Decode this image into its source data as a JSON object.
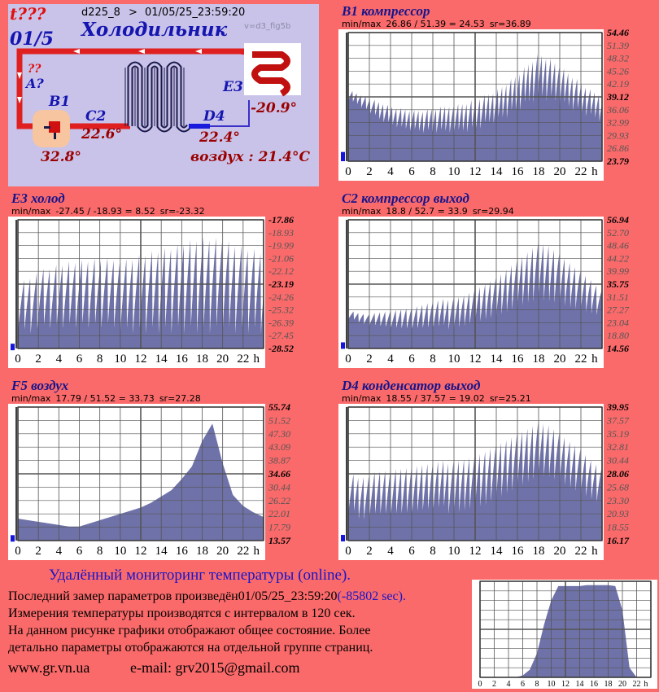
{
  "diagram": {
    "alarm": "t???",
    "fraction": "01/5",
    "device": "d225_8",
    "arrow": ">",
    "timestamp": "01/05/25_23:59:20",
    "title": "Холодильник",
    "version": "v=d3_fig5b",
    "q_marks": "??",
    "a_label": "A?",
    "b1_label": "B1",
    "c2_label": "C2",
    "d4_label": "D4",
    "e3_label": "E3",
    "b1_value": "32.8°",
    "c2_value": "22.6°",
    "d4_value": "22.4°",
    "e3_value": "-20.9°",
    "air_value": "воздух : 21.4°C"
  },
  "colors": {
    "panel_bg": "#c9c3e9",
    "plot_bg": "#ffffff",
    "plot_fill": "#6f72a8",
    "grid": "#444444",
    "title": "#15158c",
    "value_red": "#9a0000",
    "page_bg": "#fb6a6a"
  },
  "x_ticks": [
    "0",
    "2",
    "4",
    "6",
    "8",
    "10",
    "12",
    "14",
    "16",
    "18",
    "20",
    "22",
    "h"
  ],
  "chart_data": [
    {
      "id": "b1",
      "type": "area",
      "title": "B1 компрессор",
      "stats": [
        "min/max",
        "26.86 / 51.39 = 24.53",
        "sr=36.89"
      ],
      "y_ticks": [
        "54.46",
        "51.39",
        "48.32",
        "45.26",
        "42.19",
        "39.12",
        "36.06",
        "32.99",
        "29.93",
        "26.86",
        "23.79"
      ],
      "bold_ticks": [
        0,
        5,
        10
      ],
      "ylim": [
        23.79,
        54.46
      ],
      "x": [
        0,
        1,
        2,
        3,
        4,
        5,
        6,
        7,
        8,
        9,
        10,
        11,
        12,
        13,
        14,
        15,
        16,
        17,
        18,
        19,
        20,
        21,
        22,
        23,
        24
      ],
      "base": [
        38,
        37,
        35,
        33,
        32,
        31,
        30.5,
        30,
        30,
        30,
        30,
        30.5,
        31,
        32,
        33,
        34,
        35.5,
        37,
        38.5,
        38,
        37,
        36,
        35,
        34,
        33
      ],
      "peak": [
        41,
        40,
        39,
        38,
        37,
        36.5,
        36,
        36,
        36.5,
        37,
        37.5,
        38,
        39,
        40,
        41,
        43,
        45,
        47.5,
        50,
        49,
        47,
        45,
        43,
        41,
        40
      ],
      "cycles_per_hour": 2.4
    },
    {
      "id": "e3",
      "type": "area",
      "title": "E3 холод",
      "stats": [
        "min/max",
        "-27.45 / -18.93 = 8.52",
        "sr=-23.32"
      ],
      "y_ticks": [
        "-17.86",
        "-18.93",
        "-19.99",
        "-21.06",
        "-22.12",
        "-23.19",
        "-24.26",
        "-25.32",
        "-26.39",
        "-27.45",
        "-28.52"
      ],
      "bold_ticks": [
        0,
        5,
        10
      ],
      "ylim": [
        -28.52,
        -17.86
      ],
      "x": [
        0,
        1,
        2,
        3,
        4,
        5,
        6,
        7,
        8,
        9,
        10,
        11,
        12,
        13,
        14,
        15,
        16,
        17,
        18,
        19,
        20,
        21,
        22,
        23,
        24
      ],
      "base": [
        -27.3,
        -27.3,
        -27.3,
        -27.3,
        -27.3,
        -27.3,
        -27.3,
        -27.3,
        -27.3,
        -27.3,
        -27.3,
        -27.3,
        -27.3,
        -27.3,
        -27.3,
        -27.3,
        -27.3,
        -27.3,
        -27.3,
        -27.3,
        -27.3,
        -27.3,
        -27.3,
        -27.3,
        -27.3
      ],
      "peak": [
        -23,
        -22.5,
        -22,
        -21.8,
        -21.5,
        -21.3,
        -21.2,
        -21.1,
        -21,
        -21,
        -21,
        -20.8,
        -20.5,
        -20.2,
        -20,
        -19.8,
        -19.5,
        -19.2,
        -19,
        -19,
        -19.2,
        -19.5,
        -19.8,
        -20,
        -20.3
      ],
      "cycles_per_hour": 1.6
    },
    {
      "id": "f5",
      "type": "area",
      "title": "F5 воздух",
      "stats": [
        "min/max",
        "17.79 / 51.52 = 33.73",
        "sr=27.28"
      ],
      "y_ticks": [
        "55.74",
        "51.52",
        "47.30",
        "43.09",
        "38.87",
        "34.66",
        "30.44",
        "26.22",
        "22.01",
        "17.79",
        "13.57"
      ],
      "bold_ticks": [
        0,
        5,
        10
      ],
      "ylim": [
        13.57,
        55.74
      ],
      "x": [
        0,
        1,
        2,
        3,
        4,
        5,
        6,
        7,
        8,
        9,
        10,
        11,
        12,
        13,
        14,
        15,
        16,
        17,
        18,
        19,
        20,
        21,
        22,
        23,
        24
      ],
      "base": [
        20.5,
        20,
        19.5,
        19,
        18.5,
        18,
        18,
        19,
        20,
        21,
        22,
        23,
        24,
        25.5,
        27.5,
        29.5,
        33,
        37,
        45,
        50.5,
        38,
        28,
        24.5,
        22.5,
        21
      ],
      "peak": [
        20.5,
        20,
        19.5,
        19,
        18.5,
        18,
        18,
        19,
        20,
        21,
        22,
        23,
        24,
        25.5,
        27.5,
        29.5,
        33,
        37,
        45,
        50.5,
        38,
        28,
        24.5,
        22.5,
        21
      ],
      "cycles_per_hour": 0
    },
    {
      "id": "c2",
      "type": "area",
      "title": "C2 компрессор выход",
      "stats": [
        "min/max",
        "18.8 / 52.7 = 33.9",
        "sr=29.94"
      ],
      "y_ticks": [
        "56.94",
        "52.70",
        "48.46",
        "44.22",
        "39.99",
        "35.75",
        "31.51",
        "27.27",
        "23.04",
        "18.80",
        "14.56"
      ],
      "bold_ticks": [
        0,
        5,
        10
      ],
      "ylim": [
        14.56,
        56.94
      ],
      "x": [
        0,
        1,
        2,
        3,
        4,
        5,
        6,
        7,
        8,
        9,
        10,
        11,
        12,
        13,
        14,
        15,
        16,
        17,
        18,
        19,
        20,
        21,
        22,
        23,
        24
      ],
      "base": [
        24,
        23,
        22,
        21,
        20.5,
        20,
        19.8,
        19.8,
        20,
        20.5,
        21,
        22,
        23,
        24,
        25,
        26.5,
        28,
        29.5,
        30.5,
        30,
        29,
        28,
        27,
        26,
        25
      ],
      "peak": [
        27,
        26.5,
        26,
        26.5,
        27,
        27.5,
        28,
        29,
        30,
        31,
        32,
        33,
        35,
        37,
        39,
        42,
        45,
        48,
        51,
        50,
        47,
        44,
        41,
        38,
        34
      ],
      "cycles_per_hour": 2.0
    },
    {
      "id": "d4",
      "type": "area",
      "title": "D4 конденсатор выход",
      "stats": [
        "min/max",
        "18.55 / 37.57 = 19.02",
        "sr=25.21"
      ],
      "y_ticks": [
        "39.95",
        "37.57",
        "35.19",
        "32.81",
        "30.44",
        "28.06",
        "25.68",
        "23.30",
        "20.93",
        "18.55",
        "16.17"
      ],
      "bold_ticks": [
        0,
        5,
        10
      ],
      "ylim": [
        16.17,
        39.95
      ],
      "x": [
        0,
        1,
        2,
        3,
        4,
        5,
        6,
        7,
        8,
        9,
        10,
        11,
        12,
        13,
        14,
        15,
        16,
        17,
        18,
        19,
        20,
        21,
        22,
        23,
        24
      ],
      "base": [
        20.5,
        20,
        19.7,
        19.5,
        19.5,
        19.5,
        19.7,
        20,
        20.3,
        20.7,
        21,
        21.5,
        22,
        22.5,
        23.5,
        24.5,
        25.5,
        26.5,
        27.5,
        27.5,
        26.5,
        25.5,
        24.5,
        23.5,
        22.5
      ],
      "peak": [
        28,
        28,
        28.3,
        28.5,
        28.8,
        29,
        29.3,
        29.7,
        30,
        30.5,
        31,
        31.5,
        32,
        33,
        34,
        35,
        36,
        37,
        38,
        37.5,
        36,
        34.5,
        33,
        31,
        29.5
      ],
      "cycles_per_hour": 2.0
    },
    {
      "id": "thumb",
      "type": "area",
      "title": "",
      "stats": [],
      "y_ticks": [],
      "bold_ticks": [],
      "ylim": [
        0,
        100
      ],
      "x": [
        0,
        1,
        2,
        3,
        4,
        5,
        6,
        7,
        8,
        9,
        10,
        11,
        12,
        13,
        14,
        15,
        16,
        17,
        18,
        19,
        20,
        21,
        22,
        23,
        24
      ],
      "base": [
        0,
        0,
        0,
        0,
        0,
        0,
        2,
        8,
        25,
        55,
        80,
        95,
        95,
        95,
        95,
        96,
        96,
        96,
        96,
        95,
        70,
        10,
        0,
        0,
        0
      ],
      "peak": [
        0,
        0,
        0,
        0,
        0,
        0,
        2,
        8,
        25,
        55,
        80,
        95,
        95,
        95,
        95,
        96,
        96,
        96,
        96,
        95,
        70,
        10,
        0,
        0,
        0
      ],
      "cycles_per_hour": 0
    }
  ],
  "footer": {
    "heading": "Удалённый мониторинг температуры (online).",
    "line1": "Последний замер параметров произведён01/05/25_23:59:20",
    "line1_delta": "(-85802 sec).",
    "line2": "Измерения температуры  производятся с интервалом в 120 сек.",
    "line3": "На данном рисунке графики отображают общее состояние. Более",
    "line4": "детально параметры отображаются на отдельной группе страниц.",
    "site": "www.gr.vn.ua",
    "email": "e-mail: grv2015@gmail.com"
  }
}
